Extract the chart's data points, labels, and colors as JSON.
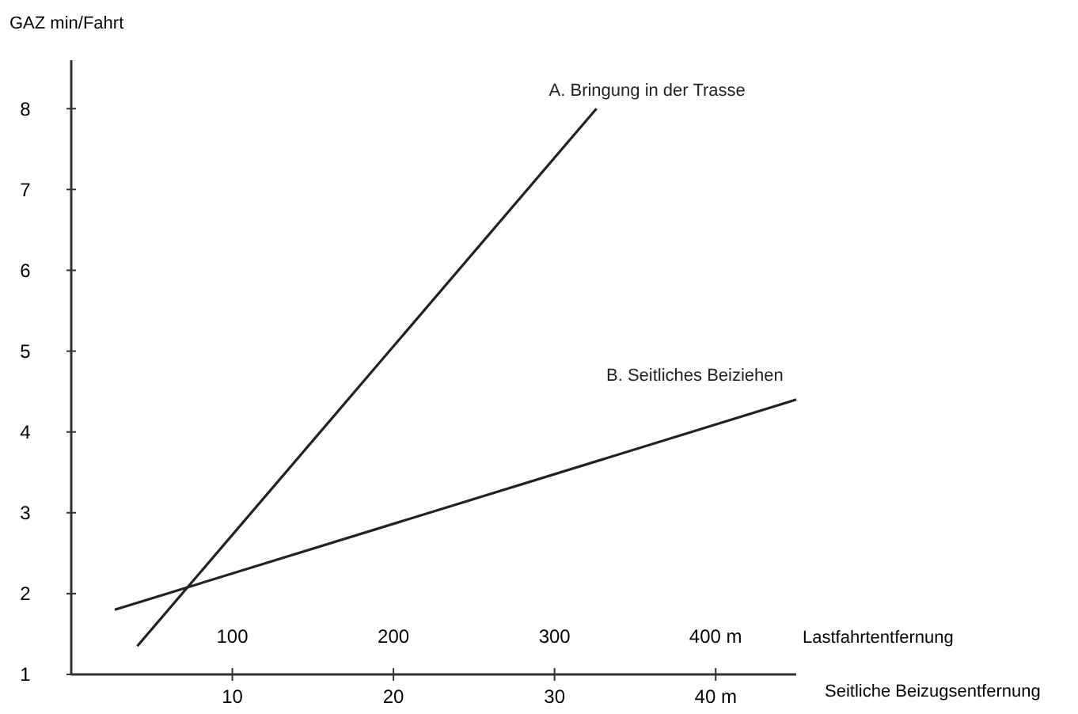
{
  "chart_data": {
    "type": "line",
    "ylabel": "GAZ min/Fahrt",
    "xlabel": "Seitliche Beizugsentfernung",
    "x2label": "Lastfahrtentfernung",
    "xlim": [
      0,
      45
    ],
    "xticks": [
      10,
      20,
      30,
      {
        "value": 40,
        "label": "40 m"
      }
    ],
    "x2lim": [
      0,
      450
    ],
    "x2ticks": [
      100,
      200,
      300,
      {
        "value": 400,
        "label": "400 m"
      }
    ],
    "ylim": [
      1,
      8.6
    ],
    "yticks": [
      1,
      2,
      3,
      4,
      5,
      6,
      7,
      8
    ],
    "series": [
      {
        "name": "A. Bringung in der Trasse",
        "color": "#222222",
        "axis": "x2",
        "x": [
          41,
          326
        ],
        "values": [
          1.35,
          8.0
        ]
      },
      {
        "name": "B. Seitliches Beiziehen",
        "color": "#222222",
        "x": [
          2.7,
          45
        ],
        "values": [
          1.8,
          4.4
        ]
      }
    ],
    "grid": false,
    "marker": "none",
    "line_style": "solid"
  }
}
